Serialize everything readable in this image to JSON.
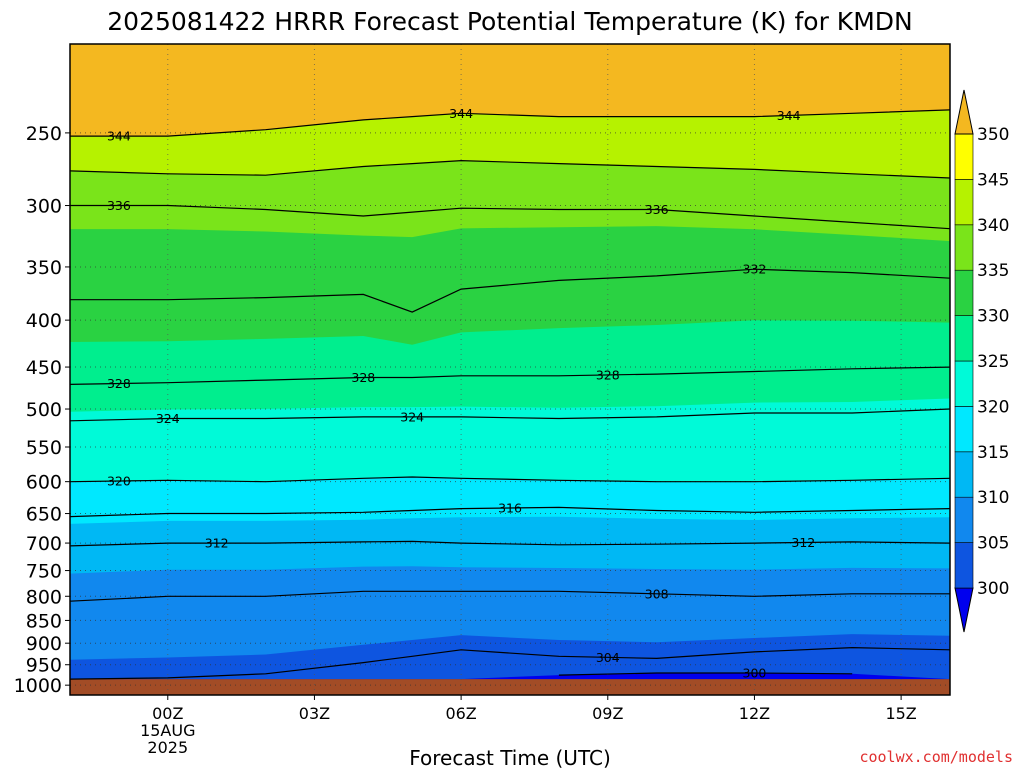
{
  "chart_data": {
    "type": "heatmap",
    "title": "2025081422 HRRR Forecast Potential Temperature (K) for KMDN",
    "xlabel": "Forecast Time (UTC)",
    "ylabel": "",
    "credit": "coolwx.com/models",
    "y_scale": "log-pressure",
    "ylim_hpa": [
      1025,
      200
    ],
    "xlim_hours": [
      -2,
      16
    ],
    "grid": true,
    "x_ticks": [
      {
        "hour": 0,
        "label": "00Z",
        "sub": [
          "15AUG",
          "2025"
        ]
      },
      {
        "hour": 3,
        "label": "03Z"
      },
      {
        "hour": 6,
        "label": "06Z"
      },
      {
        "hour": 9,
        "label": "09Z"
      },
      {
        "hour": 12,
        "label": "12Z"
      },
      {
        "hour": 15,
        "label": "15Z"
      }
    ],
    "y_ticks": [
      250,
      300,
      350,
      400,
      450,
      500,
      550,
      600,
      650,
      700,
      750,
      800,
      850,
      900,
      950,
      1000
    ],
    "surface_pressure_hpa": 985,
    "hours": [
      -2,
      0,
      2,
      4,
      5,
      6,
      8,
      10,
      12,
      14,
      16
    ],
    "isentropes": [
      {
        "theta": 300,
        "p": [
          null,
          null,
          null,
          null,
          null,
          null,
          975,
          970,
          970,
          972,
          null
        ]
      },
      {
        "theta": 304,
        "p": [
          985,
          982,
          972,
          945,
          930,
          915,
          930,
          935,
          920,
          910,
          915
        ]
      },
      {
        "theta": 308,
        "p": [
          810,
          800,
          800,
          790,
          790,
          790,
          790,
          795,
          800,
          795,
          795
        ]
      },
      {
        "theta": 312,
        "p": [
          705,
          700,
          700,
          698,
          697,
          700,
          703,
          702,
          700,
          698,
          700
        ]
      },
      {
        "theta": 316,
        "p": [
          655,
          650,
          650,
          648,
          645,
          642,
          640,
          645,
          648,
          645,
          642
        ]
      },
      {
        "theta": 320,
        "p": [
          600,
          598,
          600,
          595,
          593,
          595,
          598,
          600,
          600,
          598,
          595
        ]
      },
      {
        "theta": 324,
        "p": [
          515,
          512,
          512,
          510,
          510,
          510,
          512,
          510,
          505,
          505,
          500
        ]
      },
      {
        "theta": 328,
        "p": [
          470,
          468,
          465,
          462,
          462,
          460,
          460,
          458,
          455,
          452,
          450
        ]
      },
      {
        "theta": 332,
        "p": [
          380,
          380,
          378,
          375,
          392,
          370,
          362,
          358,
          352,
          355,
          360
        ]
      },
      {
        "theta": 336,
        "p": [
          300,
          300,
          303,
          308,
          305,
          302,
          303,
          303,
          308,
          313,
          318
        ]
      },
      {
        "theta": 340,
        "p": [
          275,
          277,
          278,
          272,
          270,
          268,
          270,
          272,
          274,
          277,
          280
        ]
      },
      {
        "theta": 344,
        "p": [
          252,
          252,
          248,
          242,
          240,
          238,
          240,
          240,
          240,
          238,
          236
        ]
      }
    ],
    "contour_labels": [
      {
        "theta": 344,
        "text": "344",
        "hour": -1.0
      },
      {
        "theta": 344,
        "text": "344",
        "hour": 6.0
      },
      {
        "theta": 344,
        "text": "344",
        "hour": 12.7
      },
      {
        "theta": 336,
        "text": "336",
        "hour": -1.0
      },
      {
        "theta": 336,
        "text": "336",
        "hour": 10.0
      },
      {
        "theta": 332,
        "text": "332",
        "hour": 12.0
      },
      {
        "theta": 328,
        "text": "328",
        "hour": -1.0
      },
      {
        "theta": 328,
        "text": "328",
        "hour": 4.0
      },
      {
        "theta": 328,
        "text": "328",
        "hour": 9.0
      },
      {
        "theta": 324,
        "text": "324",
        "hour": 0.0
      },
      {
        "theta": 324,
        "text": "324",
        "hour": 5.0
      },
      {
        "theta": 320,
        "text": "320",
        "hour": -1.0
      },
      {
        "theta": 316,
        "text": "316",
        "hour": 7.0
      },
      {
        "theta": 312,
        "text": "312",
        "hour": 1.0
      },
      {
        "theta": 312,
        "text": "312",
        "hour": 13.0
      },
      {
        "theta": 308,
        "text": "308",
        "hour": 10.0
      },
      {
        "theta": 304,
        "text": "304",
        "hour": 9.0
      },
      {
        "theta": 300,
        "text": "300",
        "hour": 12.0
      }
    ],
    "colorbar": {
      "ticks": [
        300,
        305,
        310,
        315,
        320,
        325,
        330,
        335,
        340,
        345,
        350
      ],
      "colors": [
        "#0000ee",
        "#0e55e0",
        "#1188ee",
        "#00b8f4",
        "#00e8ff",
        "#00fad8",
        "#00ee8e",
        "#2ad242",
        "#7ae41a",
        "#b6f200",
        "#ffff00",
        "#f4b820"
      ]
    },
    "surface_color": "#a24c26"
  }
}
